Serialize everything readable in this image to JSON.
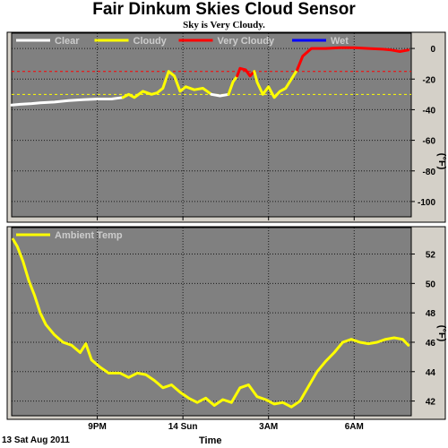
{
  "title": "Fair Dinkum Skies Cloud Sensor",
  "subtitle": "Sky is Very Cloudy.",
  "date_label": "13 Sat Aug 2011",
  "x_axis_title": "Time",
  "colors": {
    "plot_bg": "#808080",
    "panel_bg": "#d4d0c8",
    "clear": "#ffffff",
    "cloudy": "#ffff00",
    "very_cloudy": "#ff0000",
    "wet": "#0000ff",
    "ambient": "#ffff00"
  },
  "chart_data": [
    {
      "type": "line",
      "ylabel": "(°F)",
      "ylim": [
        -110,
        10
      ],
      "yticks": [
        "0",
        "-20",
        "-40",
        "-60",
        "-80",
        "-100"
      ],
      "ytick_values": [
        0,
        -20,
        -40,
        -60,
        -80,
        -100
      ],
      "xlim": [
        18.0,
        32.0
      ],
      "xticks": [
        "9PM",
        "14 Sun",
        "3AM",
        "6AM"
      ],
      "xtick_values": [
        21,
        24,
        27,
        30
      ],
      "grid": true,
      "legend": "top-left",
      "legend_entries": [
        {
          "label": "Clear",
          "color": "#ffffff"
        },
        {
          "label": "Cloudy",
          "color": "#ffff00"
        },
        {
          "label": "Very Cloudy",
          "color": "#ff0000"
        },
        {
          "label": "Wet",
          "color": "#0000ff"
        }
      ],
      "thresholds": [
        {
          "value": -15,
          "color": "#ff0000"
        },
        {
          "value": -30,
          "color": "#ffff00"
        }
      ],
      "series": [
        {
          "name": "Clear",
          "color": "#ffffff",
          "x": [
            18.0,
            18.3,
            18.7,
            19.0,
            19.5,
            20.0,
            20.5,
            21.0,
            21.5,
            21.9
          ],
          "y": [
            -37,
            -36.5,
            -36,
            -35.5,
            -35,
            -34,
            -33.5,
            -33,
            -33,
            -32
          ]
        },
        {
          "name": "Cloudy",
          "color": "#ffff00",
          "x": [
            21.9,
            22.1,
            22.3,
            22.6,
            22.9,
            23.1,
            23.3,
            23.5,
            23.7,
            23.9,
            24.1,
            24.4,
            24.7,
            25.0
          ],
          "y": [
            -32,
            -30,
            -32,
            -28,
            -30,
            -29,
            -26,
            -15,
            -18,
            -28,
            -25,
            -27,
            -26,
            -30
          ]
        },
        {
          "name": "Clear",
          "color": "#ffffff",
          "x": [
            25.0,
            25.3,
            25.6
          ],
          "y": [
            -30,
            -31,
            -30
          ]
        },
        {
          "name": "Cloudy",
          "color": "#ffff00",
          "x": [
            25.6,
            25.75,
            25.9
          ],
          "y": [
            -30,
            -22,
            -18
          ]
        },
        {
          "name": "Very Cloudy",
          "color": "#ff0000",
          "x": [
            25.9,
            26.0,
            26.2,
            26.35,
            26.5
          ],
          "y": [
            -18,
            -13,
            -14,
            -18,
            -15
          ]
        },
        {
          "name": "Cloudy",
          "color": "#ffff00",
          "x": [
            26.5,
            26.6,
            26.8,
            27.0,
            27.2,
            27.4,
            27.6,
            27.8,
            28.0
          ],
          "y": [
            -15,
            -22,
            -30,
            -25,
            -32,
            -28,
            -26,
            -20,
            -14
          ]
        },
        {
          "name": "Very Cloudy",
          "color": "#ff0000",
          "x": [
            28.0,
            28.2,
            28.5,
            29.0,
            29.5,
            30.0,
            30.5,
            31.0,
            31.3,
            31.6,
            31.9
          ],
          "y": [
            -14,
            -5,
            0,
            0,
            0.5,
            0.5,
            0,
            -0.5,
            -1,
            -2,
            -1
          ]
        }
      ]
    },
    {
      "type": "line",
      "ylabel": "(°F)",
      "ylim": [
        41,
        53.8
      ],
      "yticks": [
        "52",
        "50",
        "48",
        "46",
        "44",
        "42"
      ],
      "ytick_values": [
        52,
        50,
        48,
        46,
        44,
        42
      ],
      "xlim": [
        18.0,
        32.0
      ],
      "xticks": [
        "9PM",
        "14 Sun",
        "3AM",
        "6AM"
      ],
      "xtick_values": [
        21,
        24,
        27,
        30
      ],
      "grid": true,
      "legend": "top-left",
      "legend_entries": [
        {
          "label": "Ambient Temp",
          "color": "#ffff00"
        }
      ],
      "series": [
        {
          "name": "Ambient Temp",
          "color": "#ffff00",
          "x": [
            18.05,
            18.2,
            18.4,
            18.6,
            18.8,
            19.0,
            19.2,
            19.5,
            19.8,
            20.1,
            20.4,
            20.6,
            20.8,
            21.1,
            21.4,
            21.8,
            22.1,
            22.4,
            22.7,
            23.0,
            23.3,
            23.6,
            23.9,
            24.2,
            24.5,
            24.8,
            25.1,
            25.4,
            25.7,
            26.0,
            26.3,
            26.6,
            26.9,
            27.2,
            27.5,
            27.8,
            28.1,
            28.4,
            28.7,
            29.0,
            29.3,
            29.6,
            29.9,
            30.2,
            30.5,
            30.8,
            31.1,
            31.4,
            31.7,
            31.9
          ],
          "y": [
            53.0,
            52.5,
            51.5,
            50.2,
            49.2,
            48.0,
            47.2,
            46.5,
            46.0,
            45.8,
            45.3,
            45.9,
            44.8,
            44.3,
            43.9,
            43.9,
            43.6,
            43.9,
            43.8,
            43.4,
            42.9,
            43.1,
            42.6,
            42.2,
            41.9,
            42.2,
            41.7,
            42.1,
            41.9,
            42.9,
            43.1,
            42.3,
            42.1,
            41.8,
            41.9,
            41.6,
            42.0,
            43.0,
            44.0,
            44.7,
            45.3,
            46.0,
            46.2,
            46.0,
            45.9,
            46.0,
            46.2,
            46.3,
            46.2,
            45.8
          ]
        }
      ]
    }
  ]
}
